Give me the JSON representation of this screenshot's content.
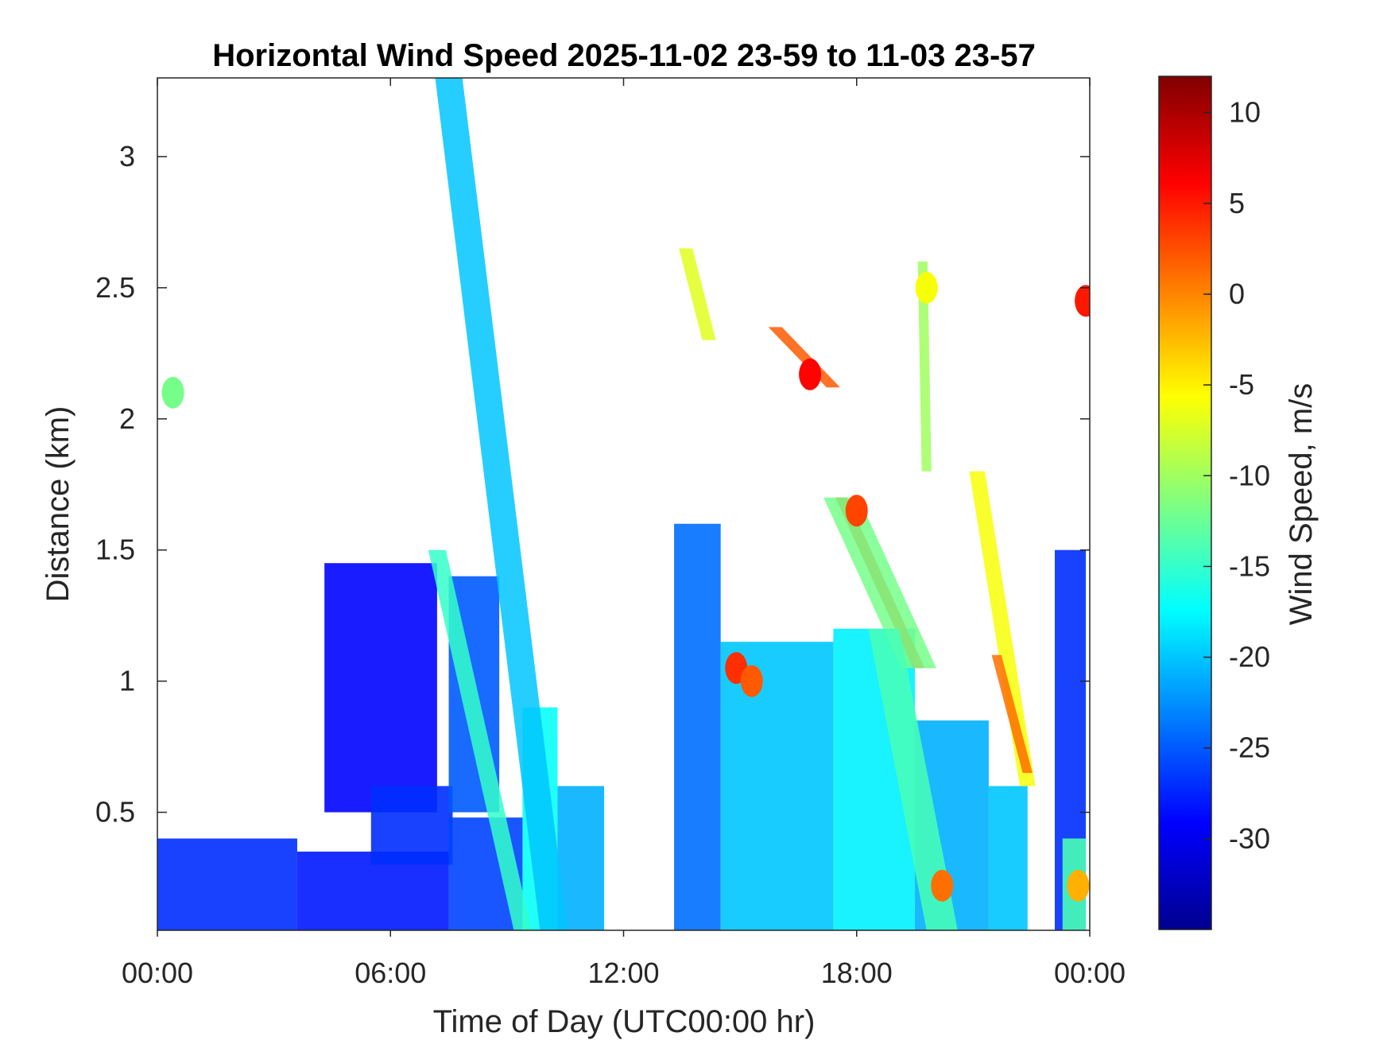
{
  "chart_data": {
    "type": "heatmap",
    "title": "Horizontal Wind Speed 2025-11-02 23-59 to 11-03 23-57",
    "xlabel": "Time of Day (UTC00:00 hr)",
    "ylabel": "Distance (km)",
    "colorbar_label": "Wind Speed, m/s",
    "xlim_hours": [
      0,
      24
    ],
    "ylim_km": [
      0.05,
      3.3
    ],
    "clim": [
      -35,
      12
    ],
    "x_ticks": [
      {
        "hour": 0,
        "label": "00:00"
      },
      {
        "hour": 6,
        "label": "06:00"
      },
      {
        "hour": 12,
        "label": "12:00"
      },
      {
        "hour": 18,
        "label": "18:00"
      },
      {
        "hour": 24,
        "label": "00:00"
      }
    ],
    "y_ticks": [
      {
        "km": 0.5,
        "label": "0.5"
      },
      {
        "km": 1,
        "label": "1"
      },
      {
        "km": 1.5,
        "label": "1.5"
      },
      {
        "km": 2,
        "label": "2"
      },
      {
        "km": 2.5,
        "label": "2.5"
      },
      {
        "km": 3,
        "label": "3"
      }
    ],
    "colorbar_ticks": [
      {
        "value": 10,
        "label": "10"
      },
      {
        "value": 5,
        "label": "5"
      },
      {
        "value": 0,
        "label": "0"
      },
      {
        "value": -5,
        "label": "-5"
      },
      {
        "value": -10,
        "label": "-10"
      },
      {
        "value": -15,
        "label": "-15"
      },
      {
        "value": -20,
        "label": "-20"
      },
      {
        "value": -25,
        "label": "-25"
      },
      {
        "value": -30,
        "label": "-30"
      }
    ],
    "colormap": "jet",
    "grid": false,
    "speed_regions": [
      {
        "hour_start": 0.0,
        "hour_end": 3.6,
        "km_bottom": 0.05,
        "km_top": 0.4,
        "speed": -27
      },
      {
        "hour_start": 3.6,
        "hour_end": 7.5,
        "km_bottom": 0.05,
        "km_top": 0.35,
        "speed": -28
      },
      {
        "hour_start": 4.3,
        "hour_end": 7.2,
        "km_bottom": 0.5,
        "km_top": 1.45,
        "speed": -29
      },
      {
        "hour_start": 5.5,
        "hour_end": 7.6,
        "km_bottom": 0.3,
        "km_top": 0.6,
        "speed": -27
      },
      {
        "hour_start": 7.5,
        "hour_end": 9.4,
        "km_bottom": 0.05,
        "km_top": 0.48,
        "speed": -26
      },
      {
        "hour_start": 7.5,
        "hour_end": 8.8,
        "km_bottom": 0.5,
        "km_top": 1.4,
        "speed": -25
      },
      {
        "hour_start": 9.4,
        "hour_end": 10.3,
        "km_bottom": 0.05,
        "km_top": 0.9,
        "speed": -17
      },
      {
        "hour_start": 10.3,
        "hour_end": 11.5,
        "km_bottom": 0.05,
        "km_top": 0.6,
        "speed": -21
      },
      {
        "hour_start": 13.3,
        "hour_end": 14.5,
        "km_bottom": 0.05,
        "km_top": 1.6,
        "speed": -24
      },
      {
        "hour_start": 14.5,
        "hour_end": 17.4,
        "km_bottom": 0.05,
        "km_top": 1.15,
        "speed": -20
      },
      {
        "hour_start": 17.4,
        "hour_end": 19.5,
        "km_bottom": 0.05,
        "km_top": 1.2,
        "speed": -18
      },
      {
        "hour_start": 19.5,
        "hour_end": 21.4,
        "km_bottom": 0.05,
        "km_top": 0.85,
        "speed": -21
      },
      {
        "hour_start": 21.4,
        "hour_end": 22.4,
        "km_bottom": 0.05,
        "km_top": 0.6,
        "speed": -20
      },
      {
        "hour_start": 23.1,
        "hour_end": 23.9,
        "km_bottom": 0.05,
        "km_top": 1.5,
        "speed": -27
      },
      {
        "hour_start": 23.3,
        "hour_end": 23.9,
        "km_bottom": 0.05,
        "km_top": 0.4,
        "speed": -14
      }
    ],
    "speed_streaks": [
      {
        "from": [
          7.5,
          3.3
        ],
        "to": [
          10.2,
          0.05
        ],
        "width_hours": 0.7,
        "speed": -20
      },
      {
        "from": [
          7.2,
          1.5
        ],
        "to": [
          9.4,
          0.05
        ],
        "width_hours": 0.45,
        "speed": -15
      },
      {
        "from": [
          13.6,
          2.65
        ],
        "to": [
          14.2,
          2.3
        ],
        "width_hours": 0.35,
        "speed": -7
      },
      {
        "from": [
          15.9,
          2.35
        ],
        "to": [
          17.4,
          2.12
        ],
        "width_hours": 0.35,
        "speed": 2
      },
      {
        "from": [
          17.6,
          1.7
        ],
        "to": [
          19.6,
          1.05
        ],
        "width_hours": 0.3,
        "speed": 3
      },
      {
        "from": [
          17.6,
          1.7
        ],
        "to": [
          19.6,
          1.05
        ],
        "width_hours": 0.9,
        "speed": -12
      },
      {
        "from": [
          18.7,
          1.2
        ],
        "to": [
          20.2,
          0.05
        ],
        "width_hours": 0.8,
        "speed": -14
      },
      {
        "from": [
          21.1,
          1.8
        ],
        "to": [
          22.4,
          0.6
        ],
        "width_hours": 0.4,
        "speed": -6
      },
      {
        "from": [
          21.6,
          1.1
        ],
        "to": [
          22.4,
          0.65
        ],
        "width_hours": 0.25,
        "speed": 1
      },
      {
        "from": [
          19.7,
          2.6
        ],
        "to": [
          19.8,
          1.8
        ],
        "width_hours": 0.25,
        "speed": -10
      }
    ],
    "speed_patches": [
      {
        "hour": 16.8,
        "km": 2.17,
        "speed": 6
      },
      {
        "hour": 14.9,
        "km": 1.05,
        "speed": 4
      },
      {
        "hour": 15.3,
        "km": 1.0,
        "speed": 2
      },
      {
        "hour": 20.2,
        "km": 0.22,
        "speed": 1
      },
      {
        "hour": 23.7,
        "km": 0.22,
        "speed": -2
      },
      {
        "hour": 23.9,
        "km": 2.45,
        "speed": 5
      },
      {
        "hour": 0.4,
        "km": 2.1,
        "speed": -12
      },
      {
        "hour": 19.8,
        "km": 2.5,
        "speed": -6
      },
      {
        "hour": 18.0,
        "km": 1.65,
        "speed": 3
      }
    ]
  }
}
